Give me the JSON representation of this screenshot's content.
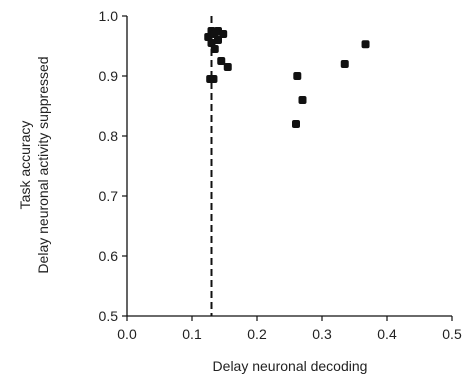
{
  "chart_data": {
    "type": "scatter",
    "title": "",
    "xlabel": "Delay neuronal decoding",
    "ylabel_lines": [
      "Task accuracy",
      "Delay neuronal activity suppressed"
    ],
    "xlim": [
      0.0,
      0.5
    ],
    "ylim": [
      0.5,
      1.0
    ],
    "xticks": [
      0.0,
      0.1,
      0.2,
      0.3,
      0.4,
      0.5
    ],
    "xtick_labels": [
      "0.0",
      "0.1",
      "0.2",
      "0.3",
      "0.4",
      "0.5"
    ],
    "yticks": [
      0.5,
      0.6,
      0.7,
      0.8,
      0.9,
      1.0
    ],
    "ytick_labels": [
      "0.5",
      "0.6",
      "0.7",
      "0.8",
      "0.9",
      "1.0"
    ],
    "grid": false,
    "reference_line": {
      "x": 0.13,
      "style": "dashed"
    },
    "marker_color": "#111111",
    "points": [
      {
        "x": 0.125,
        "y": 0.965
      },
      {
        "x": 0.13,
        "y": 0.975
      },
      {
        "x": 0.135,
        "y": 0.97
      },
      {
        "x": 0.14,
        "y": 0.975
      },
      {
        "x": 0.148,
        "y": 0.97
      },
      {
        "x": 0.13,
        "y": 0.955
      },
      {
        "x": 0.135,
        "y": 0.945
      },
      {
        "x": 0.14,
        "y": 0.96
      },
      {
        "x": 0.145,
        "y": 0.925
      },
      {
        "x": 0.155,
        "y": 0.915
      },
      {
        "x": 0.128,
        "y": 0.895
      },
      {
        "x": 0.133,
        "y": 0.895
      },
      {
        "x": 0.262,
        "y": 0.9
      },
      {
        "x": 0.27,
        "y": 0.86
      },
      {
        "x": 0.26,
        "y": 0.82
      },
      {
        "x": 0.335,
        "y": 0.92
      },
      {
        "x": 0.367,
        "y": 0.953
      }
    ]
  }
}
